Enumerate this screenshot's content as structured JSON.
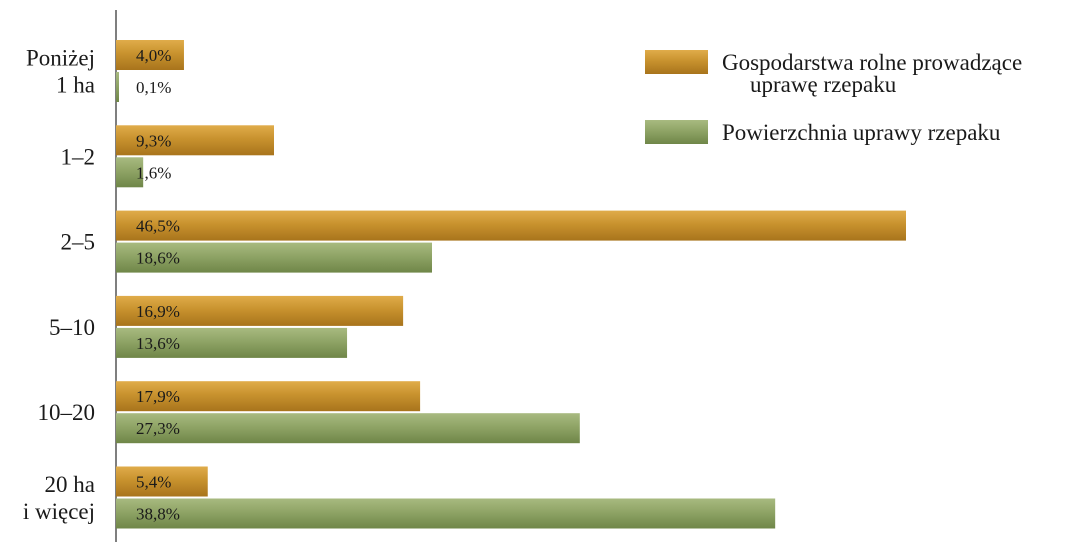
{
  "chart_data": {
    "type": "bar",
    "orientation": "horizontal",
    "categories": [
      [
        "Poniżej",
        "1 ha"
      ],
      [
        "1–2"
      ],
      [
        "2–5"
      ],
      [
        "5–10"
      ],
      [
        "10–20"
      ],
      [
        "20 ha",
        "i więcej"
      ]
    ],
    "series": [
      {
        "name": "Gospodarstwa rolne prowadzące uprawę rzepaku",
        "legend_lines": [
          "Gospodarstwa rolne prowadzące",
          "uprawę rzepaku"
        ],
        "color": "#c8922e",
        "values": [
          4.0,
          9.3,
          46.5,
          16.9,
          17.9,
          5.4
        ],
        "labels": [
          "4,0%",
          "9,3%",
          "46,5%",
          "16,9%",
          "17,9%",
          "5,4%"
        ]
      },
      {
        "name": "Powierzchnia uprawy rzepaku",
        "legend_lines": [
          "Powierzchnia uprawy rzepaku"
        ],
        "color": "#8fa466",
        "values": [
          0.1,
          1.6,
          18.6,
          13.6,
          27.3,
          38.8
        ],
        "labels": [
          "0,1%",
          "1,6%",
          "18,6%",
          "13,6%",
          "27,3%",
          "38,8%"
        ]
      }
    ],
    "xlim": [
      0,
      50
    ],
    "title": "",
    "xlabel": "",
    "ylabel": "",
    "grid": false,
    "legend_position": "top-right"
  }
}
